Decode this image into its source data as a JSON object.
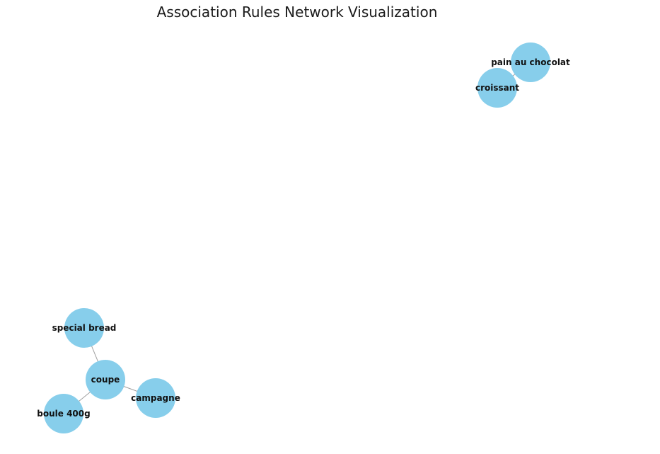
{
  "title": "Association Rules Network Visualization",
  "colors": {
    "node_fill": "#87ceeb",
    "edge": "#9e9e9e",
    "label": "#111111"
  },
  "nodes": [
    {
      "id": "pain_au_chocolat",
      "label": "pain au chocolat"
    },
    {
      "id": "croissant",
      "label": "croissant"
    },
    {
      "id": "special_bread",
      "label": "special bread"
    },
    {
      "id": "coupe",
      "label": "coupe"
    },
    {
      "id": "campagne",
      "label": "campagne"
    },
    {
      "id": "boule_400g",
      "label": "boule 400g"
    }
  ],
  "edges": [
    {
      "source": "pain_au_chocolat",
      "target": "croissant"
    },
    {
      "source": "special_bread",
      "target": "coupe"
    },
    {
      "source": "coupe",
      "target": "campagne"
    },
    {
      "source": "coupe",
      "target": "boule_400g"
    }
  ]
}
